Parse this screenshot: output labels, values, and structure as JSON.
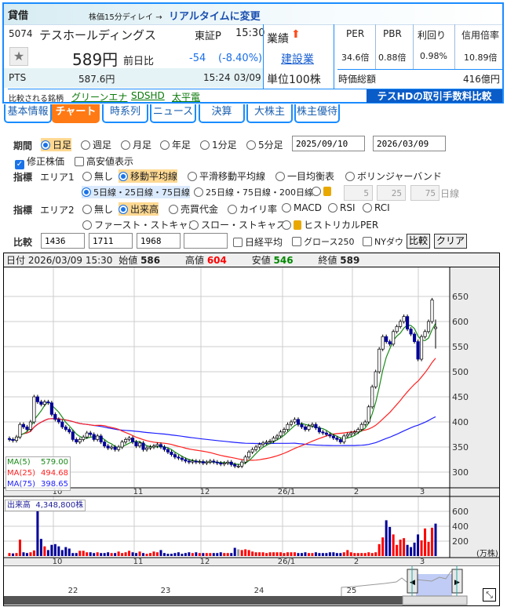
{
  "header": {
    "margin_type": "貸借",
    "delay_note": "株価15分ディレイ →",
    "realtime_link": "リアルタイムに変更"
  },
  "stock": {
    "code": "5074",
    "name": "テスホールディングス",
    "market": "東証P",
    "time": "15:30",
    "price": "589円",
    "change_label": "前日比",
    "change": "-54",
    "change_pct": "(-8.40%)",
    "performance_label": "業績",
    "performance_icon": "up-arrow-icon",
    "sector": "建設業",
    "unit": "単位100株",
    "pts_label": "PTS",
    "pts_price": "587.6円",
    "pts_time": "15:24",
    "pts_date": "03/09"
  },
  "metrics": {
    "per_label": "PER",
    "per": "34.6倍",
    "pbr_label": "PBR",
    "pbr": "0.88倍",
    "yield_label": "利回り",
    "yield": "0.98%",
    "margin_ratio_label": "信用倍率",
    "margin_ratio": "10.89倍",
    "market_cap_label": "時価総額",
    "market_cap": "416億円"
  },
  "compare": {
    "label": "比較される銘柄",
    "links": [
      "グリーンエナ",
      "SDSHD",
      "太平電"
    ],
    "banner": "テスHDの取引手数料比較"
  },
  "tabs": [
    "基本情報",
    "チャート",
    "時系列",
    "ニュース",
    "決算",
    "大株主",
    "株主優待"
  ],
  "controls": {
    "period_label": "期間",
    "periods": [
      "日足",
      "週足",
      "月足",
      "年足",
      "1分足",
      "5分足"
    ],
    "from_date": "2025/09/10",
    "to_date": "2026/03/09",
    "adjusted": "修正株価",
    "show_hilo": "高安値表示",
    "indicator_label": "指標",
    "area1": "エリア1",
    "area1_opts": [
      "無し",
      "移動平均線",
      "平滑移動平均線",
      "一目均衡表",
      "ボリンジャーバンド"
    ],
    "ma_opts": [
      "5日線・25日線・75日線",
      "25日線・75日線・200日線"
    ],
    "ma_custom": [
      "5",
      "25",
      "75"
    ],
    "ma_unit": "日線",
    "area2": "エリア2",
    "area2_opts": [
      "無し",
      "出来高",
      "売買代金",
      "カイリ率",
      "MACD",
      "RSI",
      "RCI"
    ],
    "area2_opts2": [
      "ファースト・ストキャス",
      "スロー・ストキャス",
      "ヒストリカルPER"
    ],
    "compare_label": "比較",
    "compare_codes": [
      "1436",
      "1711",
      "1968",
      ""
    ],
    "compare_checks": [
      "日経平均",
      "グロース250",
      "NYダウ"
    ],
    "compare_btn": "比較",
    "clear_btn": "クリア"
  },
  "info": {
    "date_label": "日付",
    "date": "2026/03/09 15:30",
    "open_label": "始値",
    "open": "586",
    "high_label": "高値",
    "high": "604",
    "low_label": "安値",
    "low": "546",
    "close_label": "終値",
    "close": "589"
  },
  "legend": {
    "ma5": "MA(5)",
    "ma5_val": "579.00",
    "ma25": "MA(25)",
    "ma25_val": "494.68",
    "ma75": "MA(75)",
    "ma75_val": "398.65"
  },
  "volume_label": "出来高",
  "volume_value": "4,348,800株",
  "volume_unit": "(万株)",
  "colors": {
    "up": "#ffffff",
    "down": "#000099",
    "ma5": "#1a8a1a",
    "ma25": "#ff2020",
    "ma75": "#2020ff",
    "vol_up": "#ff0000",
    "vol_down": "#000099",
    "high": "#ff0000",
    "low": "#008000"
  },
  "chart_data": [
    {
      "type": "candlestick",
      "ylim": [
        275,
        670
      ],
      "yticks": [
        300,
        350,
        400,
        450,
        500,
        550,
        600,
        650
      ],
      "xticks": [
        "10",
        "11",
        "12",
        "26/1",
        "2",
        "3"
      ],
      "grid": true,
      "close": [
        365,
        363,
        370,
        395,
        390,
        385,
        400,
        450,
        440,
        435,
        440,
        438,
        415,
        405,
        400,
        390,
        385,
        380,
        365,
        360,
        365,
        370,
        378,
        375,
        365,
        372,
        360,
        352,
        348,
        350,
        345,
        350,
        360,
        365,
        368,
        360,
        352,
        358,
        345,
        348,
        350,
        352,
        355,
        350,
        345,
        340,
        335,
        330,
        328,
        325,
        322,
        320,
        322,
        320,
        321,
        318,
        320,
        322,
        320,
        318,
        316,
        318,
        320,
        315,
        312,
        312,
        320,
        330,
        340,
        345,
        350,
        355,
        358,
        360,
        362,
        368,
        372,
        380,
        385,
        395,
        400,
        405,
        395,
        390,
        385,
        392,
        395,
        388,
        380,
        378,
        375,
        372,
        368,
        365,
        360,
        372,
        375,
        378,
        380,
        385,
        395,
        400,
        430,
        470,
        500,
        545,
        570,
        560,
        555,
        580,
        590,
        600,
        610,
        585,
        575,
        560,
        525,
        570,
        580,
        600,
        643,
        589
      ],
      "last_ohlc": [
        586,
        604,
        546,
        589
      ]
    },
    {
      "type": "bar",
      "name": "出来高",
      "unit": "万株",
      "ylim": [
        0,
        720
      ],
      "yticks": [
        200,
        400,
        600
      ],
      "values": [
        40,
        35,
        40,
        220,
        50,
        40,
        50,
        75,
        600,
        230,
        130,
        80,
        150,
        160,
        130,
        80,
        120,
        100,
        40,
        40,
        70,
        70,
        50,
        50,
        40,
        50,
        40,
        40,
        50,
        40,
        40,
        60,
        40,
        50,
        70,
        50,
        40,
        60,
        40,
        30,
        40,
        60,
        50,
        80,
        40,
        30,
        30,
        40,
        50,
        30,
        40,
        50,
        40,
        50,
        40,
        40,
        40,
        40,
        40,
        40,
        50,
        40,
        40,
        40,
        110,
        90,
        80,
        90,
        80,
        60,
        50,
        50,
        50,
        40,
        50,
        50,
        50,
        50,
        40,
        50,
        50,
        50,
        40,
        40,
        50,
        40,
        40,
        50,
        40,
        40,
        40,
        50,
        50,
        40,
        40,
        50,
        80,
        50,
        40,
        40,
        40,
        40,
        50,
        40,
        50,
        160,
        250,
        480,
        390,
        290,
        150,
        220,
        240,
        150,
        120,
        180,
        290,
        210,
        370,
        190,
        380,
        435
      ]
    },
    {
      "type": "navigator",
      "labels": [
        "22",
        "23",
        "24",
        "25",
        "26"
      ]
    }
  ]
}
